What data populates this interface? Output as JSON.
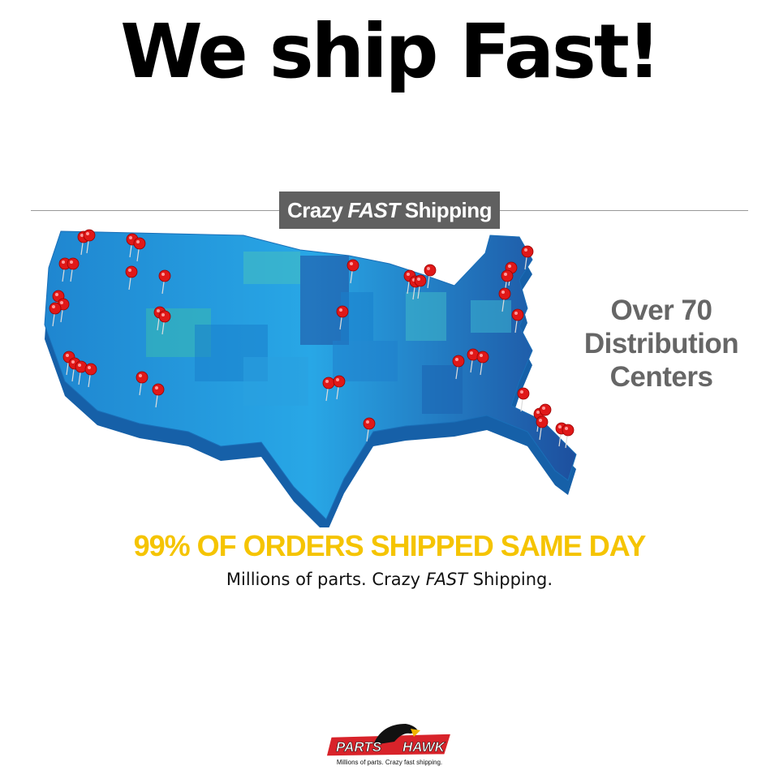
{
  "headline": "We ship Fast!",
  "badge": {
    "pre": "Crazy",
    "em": "FAST",
    "post": "Shipping"
  },
  "side_text": [
    "Over 70",
    "Distribution",
    "Centers"
  ],
  "tagline_primary": "99% OF ORDERS SHIPPED SAME DAY",
  "tagline_secondary": {
    "pre": "Millions of parts. Crazy",
    "em": "FAST",
    "post": "Shipping."
  },
  "logo": {
    "word1": "PARTS",
    "word2": "HAWK",
    "slogan": "Millions of parts. Crazy fast shipping."
  },
  "colors": {
    "map_blue": "#1e9be0",
    "map_dark": "#1f5fa8",
    "pin": "#e01818",
    "headline_yellow": "#f5c400",
    "badge_gray": "#606060",
    "logo_red": "#d8232a"
  },
  "icons": {
    "pin": "map-pin-icon",
    "logo": "hawk-logo"
  }
}
